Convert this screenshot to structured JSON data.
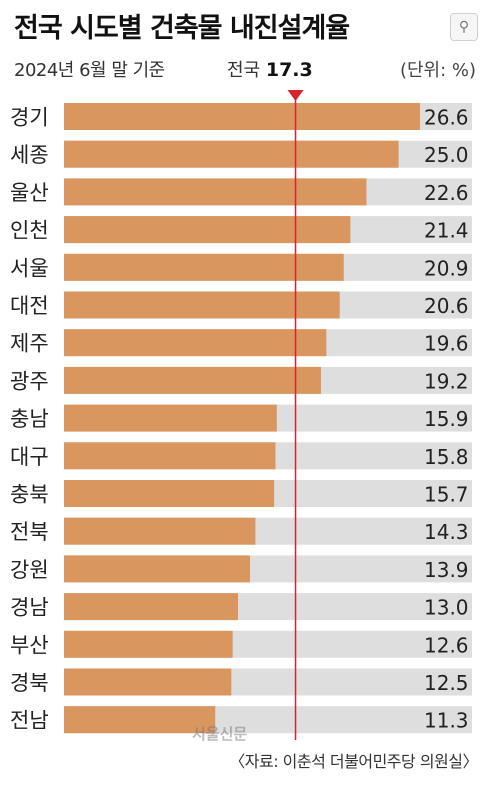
{
  "header": {
    "title": "전국 시도별 건축물 내진설계율",
    "subtitle": "2024년 6월 말 기준",
    "national_label": "전국",
    "national_value": "17.3",
    "unit": "(단위: %)"
  },
  "footer": {
    "source": "〈자료: 이춘석 더불어민주당 의원실〉",
    "watermark": "서울신문"
  },
  "colors": {
    "bar": "#d9965f",
    "track": "#dedede",
    "reference_line": "#d8232a"
  },
  "chart_data": {
    "type": "bar",
    "orientation": "horizontal",
    "categories": [
      "경기",
      "세종",
      "울산",
      "인천",
      "서울",
      "대전",
      "제주",
      "광주",
      "충남",
      "대구",
      "충북",
      "전북",
      "강원",
      "경남",
      "부산",
      "경북",
      "전남"
    ],
    "values": [
      26.6,
      25.0,
      22.6,
      21.4,
      20.9,
      20.6,
      19.6,
      19.2,
      15.9,
      15.8,
      15.7,
      14.3,
      13.9,
      13.0,
      12.6,
      12.5,
      11.3
    ],
    "value_labels": [
      "26.6",
      "25.0",
      "22.6",
      "21.4",
      "20.9",
      "20.6",
      "19.6",
      "19.2",
      "15.9",
      "15.8",
      "15.7",
      "14.3",
      "13.9",
      "13.0",
      "12.6",
      "12.5",
      "11.3"
    ],
    "reference": {
      "label": "전국",
      "value": 17.3
    },
    "xlim": [
      0,
      26.6
    ],
    "grid": false,
    "legend": "none"
  }
}
